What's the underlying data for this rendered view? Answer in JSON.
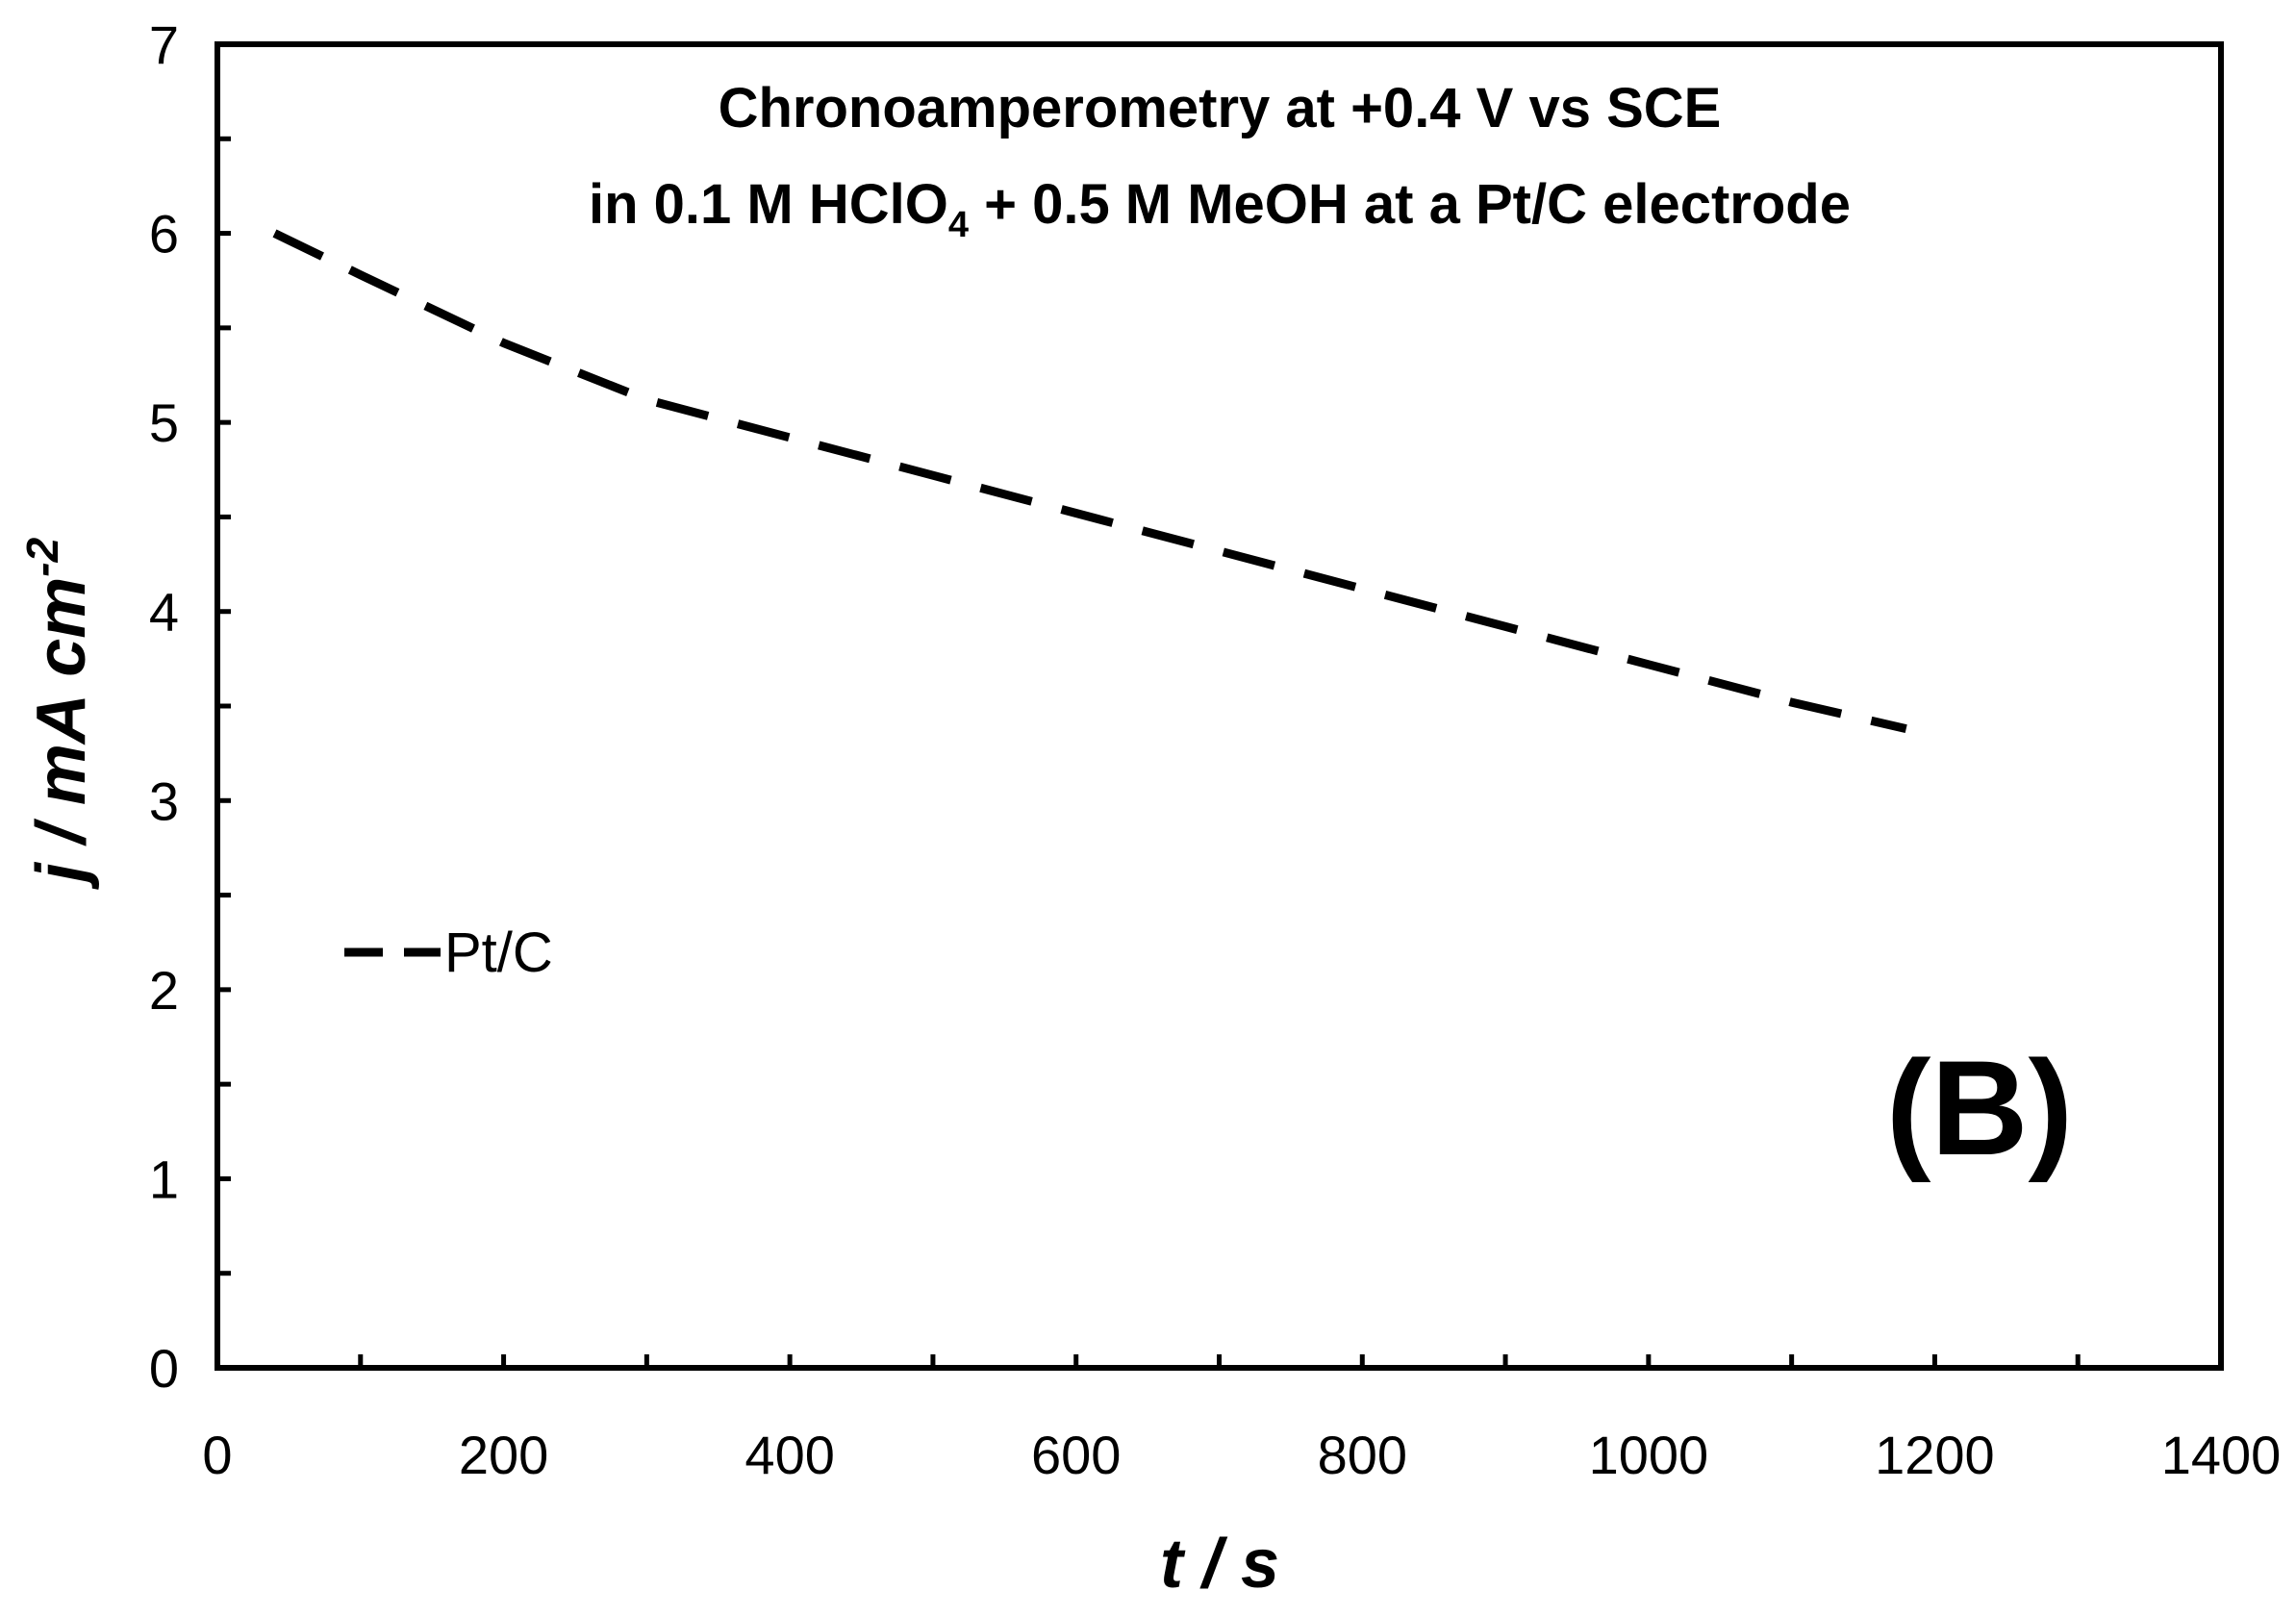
{
  "chart_data": {
    "type": "line",
    "title_line1": "Chronoamperometry at +0.4 V vs SCE",
    "title_line2_pre": "in 0.1 M HClO",
    "title_line2_sub": "4",
    "title_line2_post": " + 0.5 M MeOH at a Pt/C electrode",
    "xlabel": "t / s",
    "ylabel_main": "j / mA cm",
    "ylabel_sup": "-2",
    "panel_label": "(B)",
    "xlim": [
      0,
      1400
    ],
    "ylim": [
      0,
      7
    ],
    "x_ticks": [
      0,
      200,
      400,
      600,
      800,
      1000,
      1200,
      1400
    ],
    "x_minor_step": 100,
    "y_ticks": [
      0,
      1,
      2,
      3,
      4,
      5,
      6,
      7
    ],
    "y_minor_step": 0.5,
    "grid": false,
    "legend_position": "left",
    "line_color": "#000000",
    "line_style": "dashed",
    "series": [
      {
        "name": "Pt/C",
        "x": [
          40,
          100,
          200,
          300,
          400,
          500,
          600,
          700,
          800,
          900,
          1000,
          1100,
          1180
        ],
        "y": [
          6.0,
          5.78,
          5.42,
          5.12,
          4.92,
          4.72,
          4.52,
          4.32,
          4.12,
          3.92,
          3.72,
          3.52,
          3.38
        ]
      }
    ]
  }
}
